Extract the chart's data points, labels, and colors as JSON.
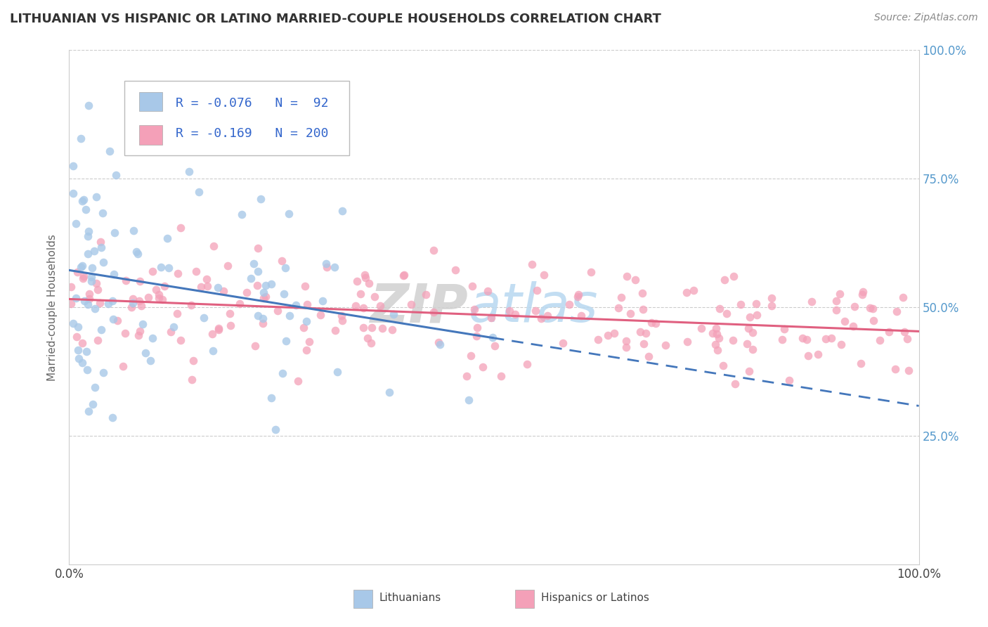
{
  "title": "LITHUANIAN VS HISPANIC OR LATINO MARRIED-COUPLE HOUSEHOLDS CORRELATION CHART",
  "source": "Source: ZipAtlas.com",
  "ylabel": "Married-couple Households",
  "legend_label1": "Lithuanians",
  "legend_label2": "Hispanics or Latinos",
  "r1": -0.076,
  "n1": 92,
  "r2": -0.169,
  "n2": 200,
  "color1": "#a8c8e8",
  "color2": "#f4a0b8",
  "line_color1": "#4477bb",
  "line_color2": "#e06080",
  "title_color": "#333333",
  "stats_color": "#3366cc",
  "background_color": "#ffffff",
  "grid_color": "#cccccc",
  "ytick_color": "#5599cc"
}
